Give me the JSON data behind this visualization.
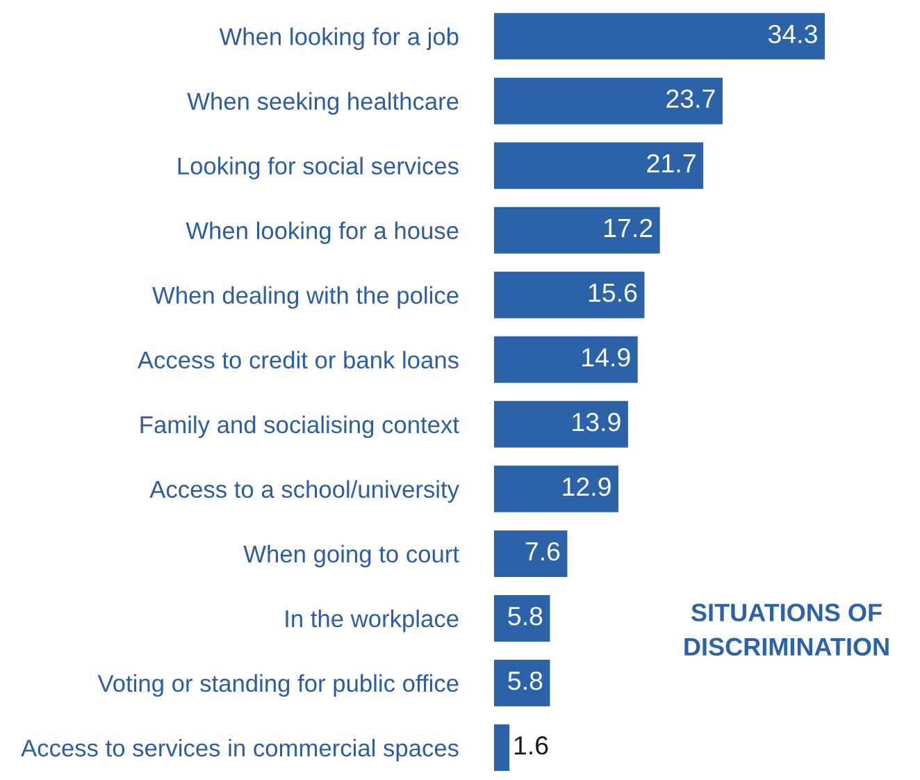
{
  "chart_data": {
    "type": "bar",
    "orientation": "horizontal",
    "categories": [
      "When looking for a job",
      "When seeking healthcare",
      "Looking for social services",
      "When looking for a house",
      "When dealing with the police",
      "Access to credit or bank loans",
      "Family and socialising context",
      "Access to a school/university",
      "When going to court",
      "In the workplace",
      "Voting or standing for public office",
      "Access to services in commercial spaces"
    ],
    "values": [
      34.3,
      23.7,
      21.7,
      17.2,
      15.6,
      14.9,
      13.9,
      12.9,
      7.6,
      5.8,
      5.8,
      1.6
    ],
    "color": "#2b62a8",
    "data_labels": true,
    "grid": false,
    "legend": false,
    "annotations": [
      "SITUATIONS OF\nDISCRIMINATION"
    ]
  }
}
